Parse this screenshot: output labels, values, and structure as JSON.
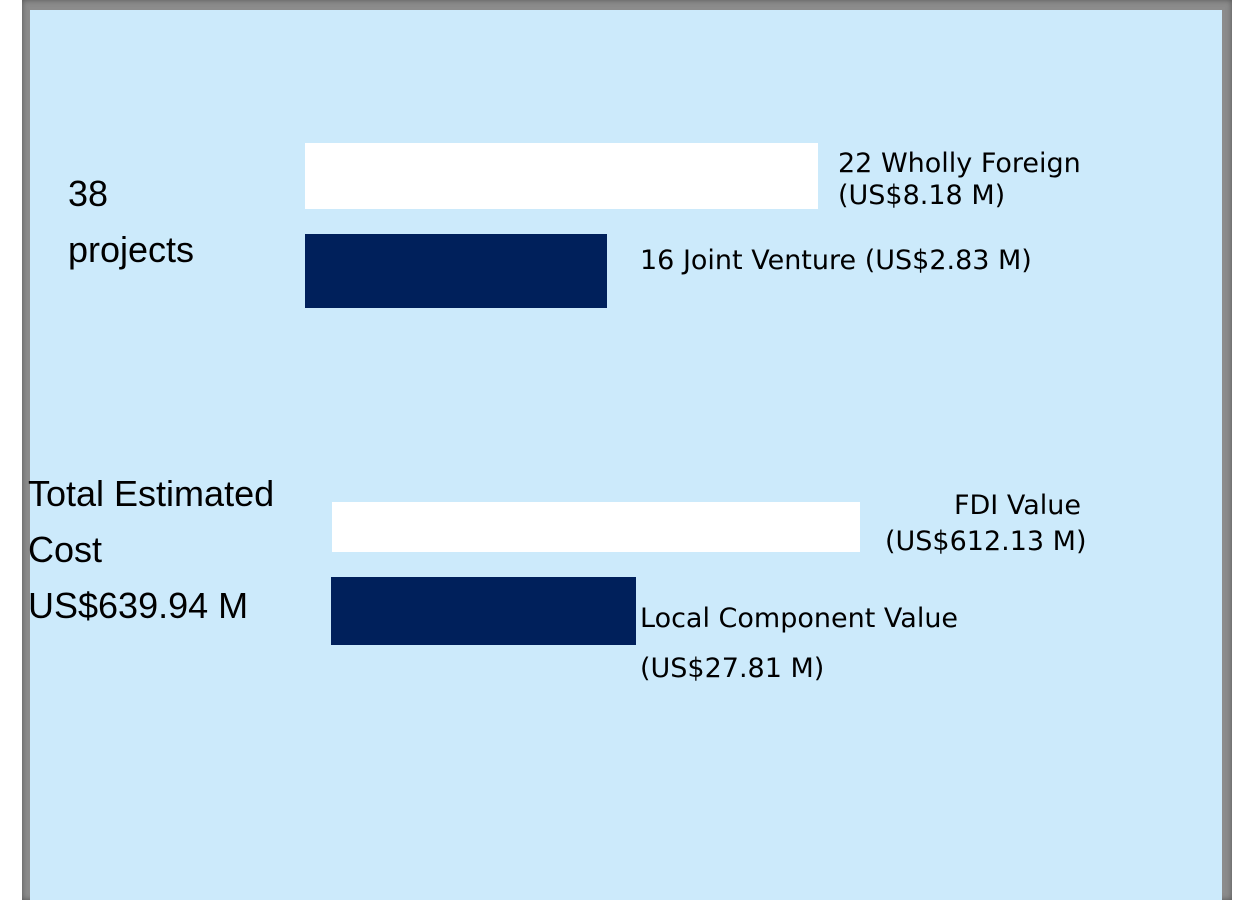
{
  "projects": {
    "summary": [
      "38",
      "projects"
    ],
    "items": [
      {
        "label": [
          "22 Wholly Foreign",
          "(US$8.18 M)"
        ]
      },
      {
        "label": [
          "16 Joint Venture (US$2.83 M)"
        ]
      }
    ]
  },
  "cost": {
    "summary": [
      "Total Estimated",
      "Cost",
      "US$639.94 M"
    ],
    "items": [
      {
        "label": [
          "FDI Value",
          "(US$612.13 M)"
        ]
      },
      {
        "label": [
          "Local Component Value",
          "(US$27.81 M)"
        ]
      }
    ]
  }
}
